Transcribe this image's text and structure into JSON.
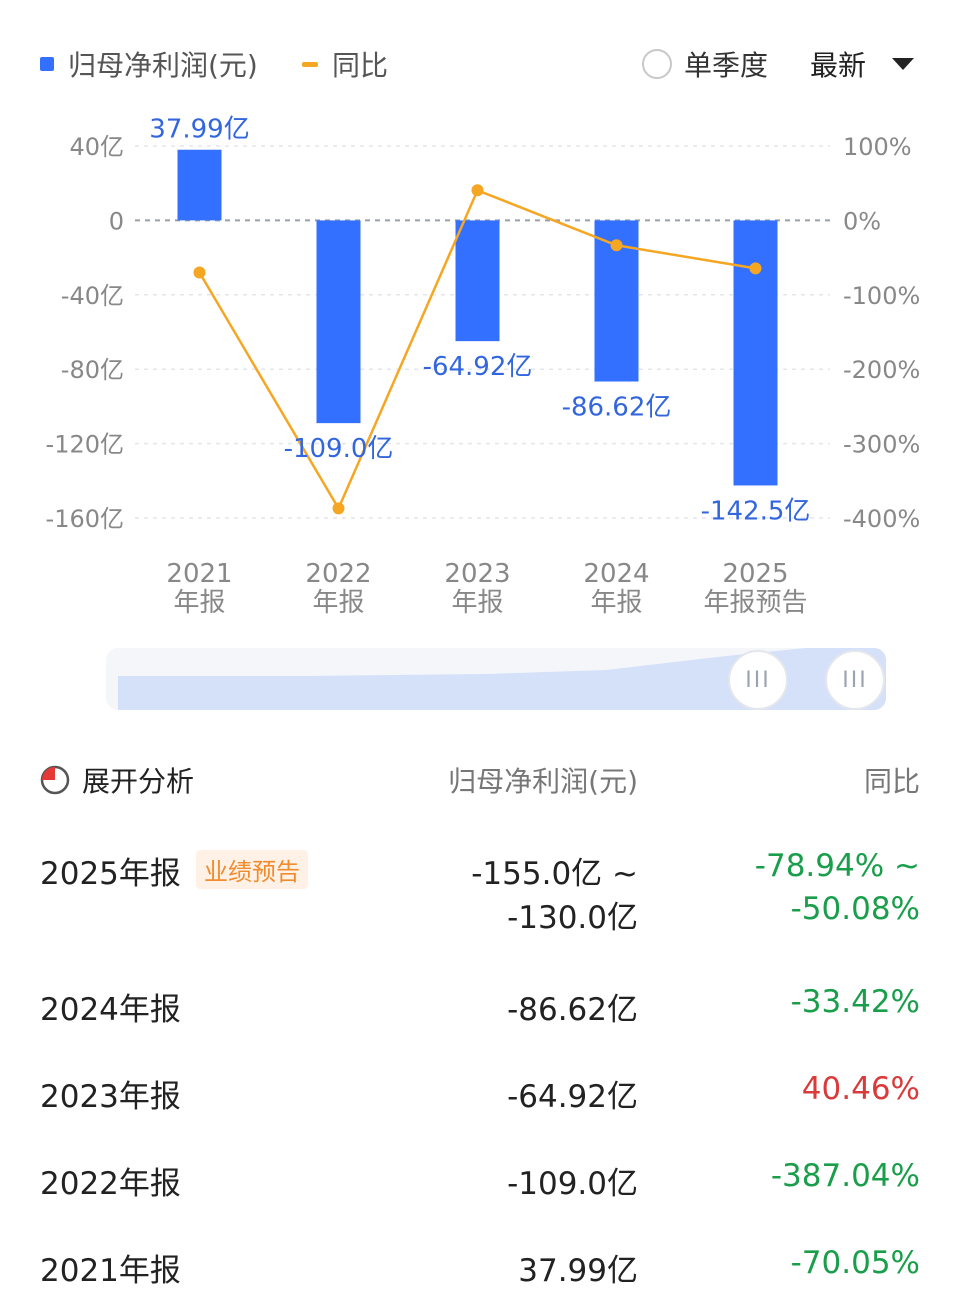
{
  "legend": {
    "profit_label": "归母净利润(元)",
    "yoy_label": "同比"
  },
  "controls": {
    "quarter_label": "单季度",
    "latest_label": "最新"
  },
  "colors": {
    "bar": "#3370ff",
    "line": "#f5a623",
    "positive_yoy": "#d93a3a",
    "negative_yoy": "#1a9e4b"
  },
  "chart_data": {
    "type": "bar",
    "categories": [
      [
        "2021",
        "年报"
      ],
      [
        "2022",
        "年报"
      ],
      [
        "2023",
        "年报"
      ],
      [
        "2024",
        "年报"
      ],
      [
        "2025",
        "年报预告"
      ]
    ],
    "series": [
      {
        "name": "归母净利润(元)",
        "type": "bar",
        "axis": "left",
        "values": [
          37.99,
          -109.0,
          -64.92,
          -86.62,
          -142.5
        ],
        "labels": [
          "37.99亿",
          "-109.0亿",
          "-64.92亿",
          "-86.62亿",
          "-142.5亿"
        ]
      },
      {
        "name": "同比",
        "type": "line",
        "axis": "right",
        "values": [
          -70.05,
          -387.04,
          40.46,
          -33.42,
          -64.51
        ]
      }
    ],
    "ylim_left": [
      -160,
      40
    ],
    "ylim_right": [
      -400,
      100
    ],
    "yticks_left": [
      "40亿",
      "0",
      "-40亿",
      "-80亿",
      "-120亿",
      "-160亿"
    ],
    "yticks_right": [
      "100%",
      "0%",
      "-100%",
      "-200%",
      "-300%",
      "-400%"
    ],
    "grid": true
  },
  "table": {
    "expand_label": "展开分析",
    "col_profit": "归母净利润(元)",
    "col_yoy": "同比",
    "rows": [
      {
        "period": "2025年报",
        "badge": "业绩预告",
        "value": "-155.0亿 ~",
        "value2": "-130.0亿",
        "yoy": "-78.94% ~",
        "yoy2": "-50.08%"
      },
      {
        "period": "2024年报",
        "value": "-86.62亿",
        "yoy": "-33.42%"
      },
      {
        "period": "2023年报",
        "value": "-64.92亿",
        "yoy": "40.46%"
      },
      {
        "period": "2022年报",
        "value": "-109.0亿",
        "yoy": "-387.04%"
      },
      {
        "period": "2021年报",
        "value": "37.99亿",
        "yoy": "-70.05%"
      }
    ]
  }
}
